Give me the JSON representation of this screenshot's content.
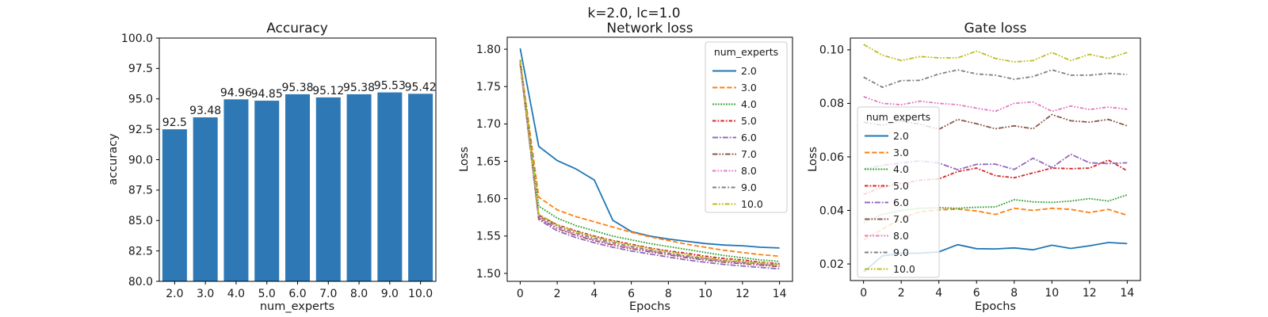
{
  "figure": {
    "suptitle": "k=2.0, lc=1.0",
    "background": "#ffffff",
    "text_color": "#1a1a1a",
    "axes_edge_color": "#000000"
  },
  "chart_data": [
    {
      "type": "bar",
      "title": "Accuracy",
      "xlabel": "num_experts",
      "ylabel": "accuracy",
      "categories": [
        "2.0",
        "3.0",
        "4.0",
        "5.0",
        "6.0",
        "7.0",
        "8.0",
        "9.0",
        "10.0"
      ],
      "values": [
        92.5,
        93.48,
        94.96,
        94.85,
        95.38,
        95.12,
        95.38,
        95.53,
        95.42
      ],
      "value_labels": [
        "92.5",
        "93.48",
        "94.96",
        "94.85",
        "95.38",
        "95.12",
        "95.38",
        "95.53",
        "95.42"
      ],
      "bar_color": "#2e79b5",
      "ylim": [
        80.0,
        100.0
      ],
      "ytick_values": [
        80.0,
        82.5,
        85.0,
        87.5,
        90.0,
        92.5,
        95.0,
        97.5,
        100.0
      ],
      "ytick_labels": [
        "80.0",
        "82.5",
        "85.0",
        "87.5",
        "90.0",
        "92.5",
        "95.0",
        "97.5",
        "100.0"
      ],
      "grid": false
    },
    {
      "type": "line",
      "title": "Network loss",
      "xlabel": "Epochs",
      "ylabel": "Loss",
      "x": [
        0,
        1,
        2,
        3,
        4,
        5,
        6,
        7,
        8,
        9,
        10,
        11,
        12,
        13,
        14
      ],
      "xlim_data": [
        0,
        14
      ],
      "xtick_values": [
        0,
        2,
        4,
        6,
        8,
        10,
        12,
        14
      ],
      "xtick_labels": [
        "0",
        "2",
        "4",
        "6",
        "8",
        "10",
        "12",
        "14"
      ],
      "ylim": [
        1.4894,
        1.816
      ],
      "ytick_values": [
        1.5,
        1.55,
        1.6,
        1.65,
        1.7,
        1.75,
        1.8
      ],
      "ytick_labels": [
        "1.50",
        "1.55",
        "1.60",
        "1.65",
        "1.70",
        "1.75",
        "1.80"
      ],
      "grid": false,
      "legend": {
        "title": "num_experts",
        "position": "upper right"
      },
      "series": [
        {
          "name": "2.0",
          "color": "#1f77b4",
          "dash": "",
          "values": [
            1.801,
            1.67,
            1.651,
            1.64,
            1.625,
            1.571,
            1.556,
            1.55,
            1.546,
            1.543,
            1.54,
            1.538,
            1.537,
            1.535,
            1.534
          ]
        },
        {
          "name": "3.0",
          "color": "#ff7f0e",
          "dash": "6.3,2.8",
          "values": [
            1.786,
            1.602,
            1.585,
            1.576,
            1.569,
            1.562,
            1.555,
            1.549,
            1.544,
            1.539,
            1.535,
            1.531,
            1.528,
            1.525,
            1.523
          ]
        },
        {
          "name": "4.0",
          "color": "#2ca02c",
          "dash": "1.8,1.6",
          "values": [
            1.785,
            1.59,
            1.574,
            1.564,
            1.557,
            1.55,
            1.545,
            1.54,
            1.536,
            1.532,
            1.528,
            1.524,
            1.521,
            1.518,
            1.516
          ]
        },
        {
          "name": "5.0",
          "color": "#d62728",
          "dash": "4.5,2,1.8,2",
          "values": [
            1.783,
            1.578,
            1.565,
            1.557,
            1.55,
            1.544,
            1.539,
            1.534,
            1.53,
            1.527,
            1.523,
            1.52,
            1.518,
            1.515,
            1.513
          ]
        },
        {
          "name": "6.0",
          "color": "#9467bd",
          "dash": "7,2,1.8,2",
          "values": [
            1.78,
            1.572,
            1.557,
            1.548,
            1.541,
            1.535,
            1.53,
            1.526,
            1.522,
            1.518,
            1.515,
            1.512,
            1.51,
            1.508,
            1.506
          ]
        },
        {
          "name": "7.0",
          "color": "#8c564b",
          "dash": "6.5,2,1.8,2,1.8,2",
          "values": [
            1.781,
            1.574,
            1.56,
            1.551,
            1.544,
            1.538,
            1.533,
            1.529,
            1.525,
            1.521,
            1.518,
            1.515,
            1.513,
            1.511,
            1.509
          ]
        },
        {
          "name": "8.0",
          "color": "#e377c2",
          "dash": "4.5,2,1.8,2,1.8,2",
          "values": [
            1.782,
            1.575,
            1.561,
            1.552,
            1.545,
            1.539,
            1.534,
            1.53,
            1.526,
            1.522,
            1.519,
            1.516,
            1.514,
            1.512,
            1.51
          ]
        },
        {
          "name": "9.0",
          "color": "#7f7f7f",
          "dash": "5,2.5,1.8,2.5",
          "values": [
            1.783,
            1.577,
            1.563,
            1.554,
            1.547,
            1.541,
            1.536,
            1.531,
            1.527,
            1.523,
            1.52,
            1.517,
            1.515,
            1.513,
            1.511
          ]
        },
        {
          "name": "10.0",
          "color": "#bcbd22",
          "dash": "6,2,1.8,2,1.8,2",
          "values": [
            1.784,
            1.579,
            1.565,
            1.556,
            1.549,
            1.543,
            1.538,
            1.533,
            1.529,
            1.525,
            1.521,
            1.518,
            1.516,
            1.514,
            1.512
          ]
        }
      ]
    },
    {
      "type": "line",
      "title": "Gate loss",
      "xlabel": "Epochs",
      "ylabel": "Loss",
      "x": [
        0,
        1,
        2,
        3,
        4,
        5,
        6,
        7,
        8,
        9,
        10,
        11,
        12,
        13,
        14
      ],
      "xlim_data": [
        0,
        14
      ],
      "xtick_values": [
        0,
        2,
        4,
        6,
        8,
        10,
        12,
        14
      ],
      "xtick_labels": [
        "0",
        "2",
        "4",
        "6",
        "8",
        "10",
        "12",
        "14"
      ],
      "ylim": [
        0.0138,
        0.1044
      ],
      "ytick_values": [
        0.02,
        0.04,
        0.06,
        0.08,
        0.1
      ],
      "ytick_labels": [
        "0.02",
        "0.04",
        "0.06",
        "0.08",
        "0.10"
      ],
      "grid": false,
      "legend": {
        "title": "num_experts",
        "position": "center left"
      },
      "series": [
        {
          "name": "2.0",
          "color": "#1f77b4",
          "dash": "",
          "values": [
            0.017,
            0.023,
            0.024,
            0.024,
            0.0245,
            0.0272,
            0.0257,
            0.0256,
            0.026,
            0.0253,
            0.027,
            0.0258,
            0.0268,
            0.028,
            0.0276
          ]
        },
        {
          "name": "3.0",
          "color": "#ff7f0e",
          "dash": "6.3,2.8",
          "values": [
            0.029,
            0.033,
            0.037,
            0.0395,
            0.0402,
            0.0405,
            0.0398,
            0.0385,
            0.0408,
            0.04,
            0.0408,
            0.0404,
            0.0392,
            0.0404,
            0.0382
          ]
        },
        {
          "name": "4.0",
          "color": "#2ca02c",
          "dash": "1.8,1.6",
          "values": [
            0.0355,
            0.0385,
            0.04,
            0.0408,
            0.041,
            0.0408,
            0.0412,
            0.0413,
            0.044,
            0.0432,
            0.043,
            0.0435,
            0.0444,
            0.0435,
            0.0458
          ]
        },
        {
          "name": "5.0",
          "color": "#d62728",
          "dash": "4.5,2,1.8,2",
          "values": [
            0.046,
            0.0487,
            0.05,
            0.0513,
            0.0518,
            0.0545,
            0.0558,
            0.053,
            0.0522,
            0.054,
            0.0558,
            0.0556,
            0.0558,
            0.0588,
            0.0548
          ]
        },
        {
          "name": "6.0",
          "color": "#9467bd",
          "dash": "7,2,1.8,2",
          "values": [
            0.0555,
            0.0568,
            0.0577,
            0.0585,
            0.0577,
            0.0552,
            0.0572,
            0.0573,
            0.0553,
            0.0595,
            0.056,
            0.061,
            0.0578,
            0.0575,
            0.0578
          ]
        },
        {
          "name": "7.0",
          "color": "#8c564b",
          "dash": "6.5,2,1.8,2,1.8,2",
          "values": [
            0.073,
            0.0718,
            0.0735,
            0.0722,
            0.0703,
            0.074,
            0.0724,
            0.0705,
            0.0716,
            0.0705,
            0.0758,
            0.0735,
            0.073,
            0.074,
            0.0716
          ]
        },
        {
          "name": "8.0",
          "color": "#e377c2",
          "dash": "4.5,2,1.8,2,1.8,2",
          "values": [
            0.0825,
            0.08,
            0.0795,
            0.0808,
            0.08,
            0.0795,
            0.0782,
            0.077,
            0.08,
            0.0805,
            0.077,
            0.079,
            0.0777,
            0.0786,
            0.0778
          ]
        },
        {
          "name": "9.0",
          "color": "#7f7f7f",
          "dash": "5,2.5,1.8,2.5",
          "values": [
            0.0898,
            0.086,
            0.0885,
            0.0886,
            0.091,
            0.0925,
            0.091,
            0.0905,
            0.089,
            0.09,
            0.0925,
            0.0905,
            0.0905,
            0.0912,
            0.0908
          ]
        },
        {
          "name": "10.0",
          "color": "#bcbd22",
          "dash": "6,2,1.8,2,1.8,2",
          "values": [
            0.102,
            0.098,
            0.096,
            0.0975,
            0.097,
            0.097,
            0.0995,
            0.0968,
            0.0955,
            0.096,
            0.099,
            0.096,
            0.0983,
            0.0968,
            0.099
          ]
        }
      ]
    }
  ]
}
